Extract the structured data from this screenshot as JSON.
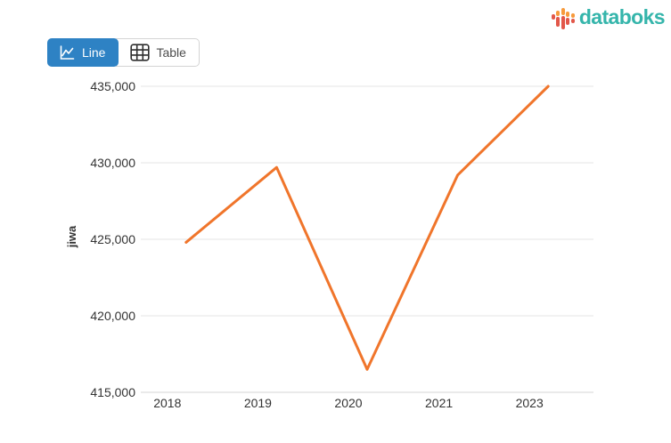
{
  "logo": {
    "text": "databoks",
    "icon": "databoks-bars-icon"
  },
  "toolbar": {
    "line_label": "Line",
    "table_label": "Table",
    "active_view": "Line"
  },
  "colors": {
    "btn_blue": "#2E82C4",
    "teal": "#35B5AB",
    "logo_orange": "#F79A3B",
    "logo_red": "#E25749",
    "line_orange": "#F0752B",
    "grid": "#E6E6E6",
    "axis_line": "#D6D6D6",
    "axis_text": "#333333"
  },
  "chart_data": {
    "type": "line",
    "categories": [
      "2018",
      "2019",
      "2020",
      "2021",
      "2023"
    ],
    "values": [
      424800,
      429700,
      416500,
      429200,
      435000
    ],
    "series_color": "#F0752B",
    "title": "",
    "xlabel": "",
    "ylabel": "jiwa",
    "unit": "jiwa",
    "ylim": [
      415000,
      435000
    ],
    "ytick_step": 5000,
    "ytick_labels": [
      "415,000",
      "420,000",
      "425,000",
      "430,000",
      "435,000"
    ],
    "grid": true,
    "legend": "none",
    "markers": false
  }
}
